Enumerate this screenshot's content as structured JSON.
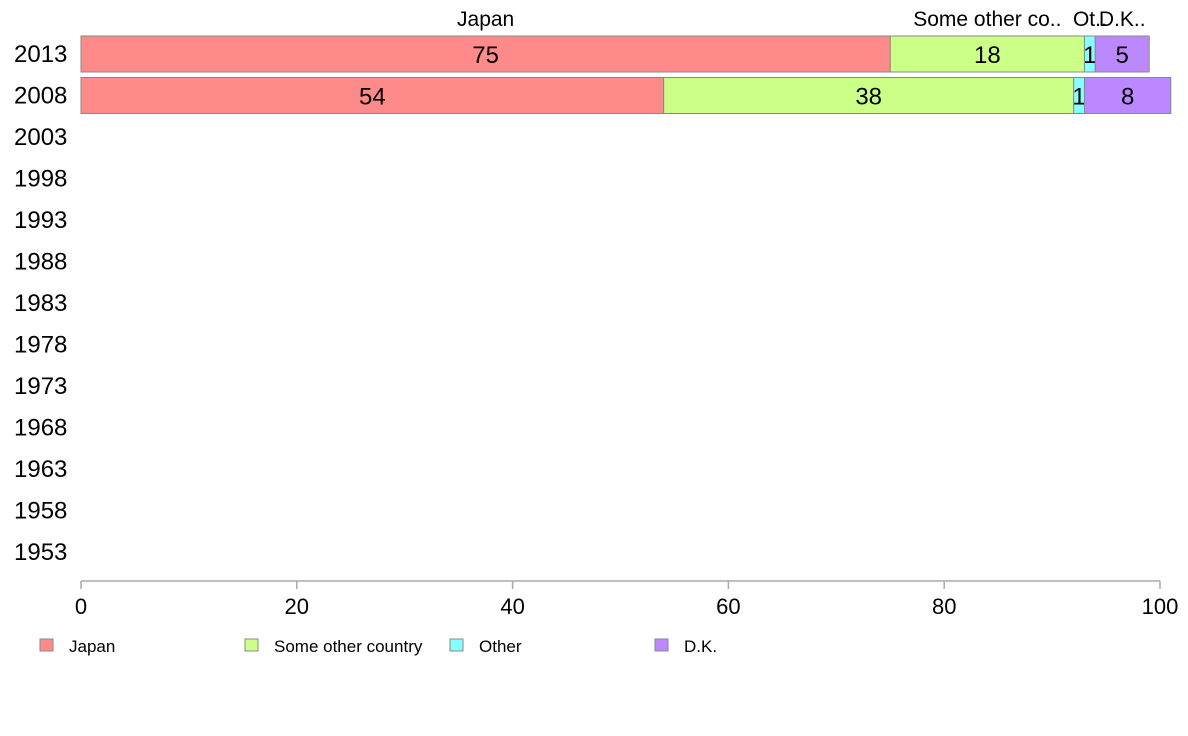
{
  "chart_data": {
    "type": "bar",
    "orientation": "horizontal",
    "stacked": true,
    "categories": [
      "2013",
      "2008",
      "2003",
      "1998",
      "1993",
      "1988",
      "1983",
      "1978",
      "1973",
      "1968",
      "1963",
      "1958",
      "1953"
    ],
    "series": [
      {
        "name": "Japan",
        "color": "#ff8a8a",
        "values": [
          75,
          54,
          null,
          null,
          null,
          null,
          null,
          null,
          null,
          null,
          null,
          null,
          null
        ]
      },
      {
        "name": "Some other country",
        "color": "#ccff88",
        "values": [
          18,
          38,
          null,
          null,
          null,
          null,
          null,
          null,
          null,
          null,
          null,
          null,
          null
        ]
      },
      {
        "name": "Other",
        "color": "#88ffff",
        "values": [
          1,
          1,
          null,
          null,
          null,
          null,
          null,
          null,
          null,
          null,
          null,
          null,
          null
        ]
      },
      {
        "name": "D.K.",
        "color": "#bb88ff",
        "values": [
          5,
          8,
          null,
          null,
          null,
          null,
          null,
          null,
          null,
          null,
          null,
          null,
          null
        ]
      }
    ],
    "top_labels": [
      "Japan",
      "Some other co..",
      "Ot..",
      "D.K.."
    ],
    "xlim": [
      0,
      100
    ],
    "xticks": [
      0,
      20,
      40,
      60,
      80,
      100
    ],
    "title": "",
    "xlabel": "",
    "ylabel": "",
    "grid": false,
    "legend_position": "bottom"
  }
}
